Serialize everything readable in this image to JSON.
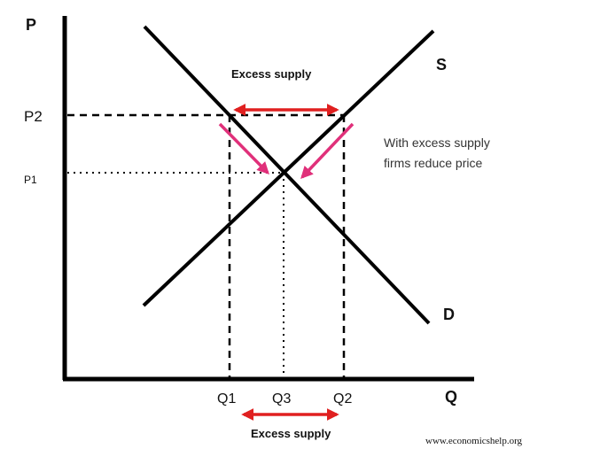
{
  "axes": {
    "y_label": "P",
    "x_label": "Q"
  },
  "curves": {
    "supply_label": "S",
    "demand_label": "D"
  },
  "price_labels": {
    "p2": "P2",
    "p1": "P1"
  },
  "quantity_labels": {
    "q1": "Q1",
    "q3": "Q3",
    "q2": "Q2"
  },
  "annotations": {
    "excess_top": "Excess supply",
    "excess_bottom": "Excess supply",
    "note_line1": "With excess supply",
    "note_line2": "firms reduce price"
  },
  "source": "www.economicshelp.org",
  "colors": {
    "arrow_red": "#e02020",
    "arrow_pink": "#e0307a",
    "line": "#000000"
  }
}
